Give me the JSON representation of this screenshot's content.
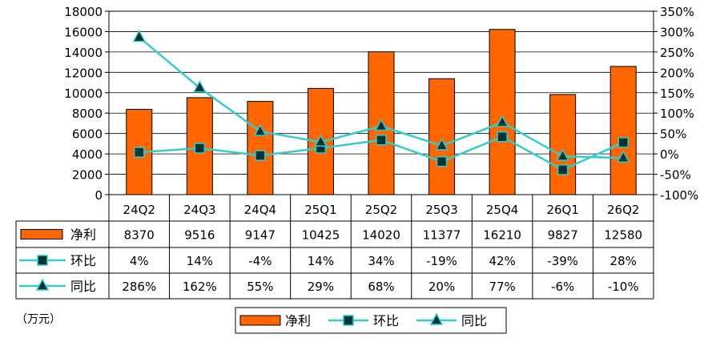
{
  "unit_label": "（万元）",
  "chart_data": {
    "type": "bar",
    "categories": [
      "24Q2",
      "24Q3",
      "24Q4",
      "25Q1",
      "25Q2",
      "25Q3",
      "25Q4",
      "26Q1",
      "26Q2"
    ],
    "series": [
      {
        "name": "净利",
        "kind": "bar",
        "axis": "left",
        "color": "#ff6600",
        "values": [
          8370,
          9516,
          9147,
          10425,
          14020,
          11377,
          16210,
          9827,
          12580
        ],
        "labels": [
          "8370",
          "9516",
          "9147",
          "10425",
          "14020",
          "11377",
          "16210",
          "9827",
          "12580"
        ]
      },
      {
        "name": "环比",
        "kind": "line",
        "axis": "right",
        "marker": "square",
        "color": "#33cccc",
        "values": [
          4,
          14,
          -4,
          14,
          34,
          -19,
          42,
          -39,
          28
        ],
        "labels": [
          "4%",
          "14%",
          "-4%",
          "14%",
          "34%",
          "-19%",
          "42%",
          "-39%",
          "28%"
        ]
      },
      {
        "name": "同比",
        "kind": "line",
        "axis": "right",
        "marker": "triangle",
        "color": "#33cccc",
        "values": [
          286,
          162,
          55,
          29,
          68,
          20,
          77,
          -6,
          -10
        ],
        "labels": [
          "286%",
          "162%",
          "55%",
          "29%",
          "68%",
          "20%",
          "77%",
          "-6%",
          "-10%"
        ]
      }
    ],
    "y_left": {
      "min": 0,
      "max": 18000,
      "ticks": [
        "0",
        "2000",
        "4000",
        "6000",
        "8000",
        "10000",
        "12000",
        "14000",
        "16000",
        "18000"
      ]
    },
    "y_right": {
      "min": -100,
      "max": 350,
      "ticks": [
        "-100%",
        "-50%",
        "0%",
        "50%",
        "100%",
        "150%",
        "200%",
        "250%",
        "300%",
        "350%"
      ]
    },
    "grid": true,
    "legend": "bottom"
  }
}
